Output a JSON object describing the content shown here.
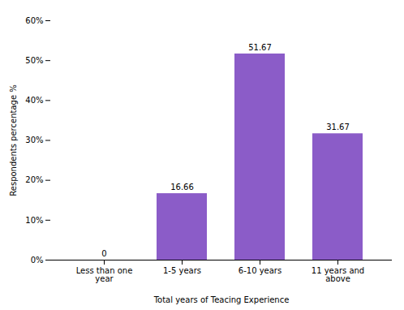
{
  "chart_data": {
    "type": "bar",
    "categories": [
      "Less than one\nyear",
      "1-5 years",
      "6-10 years",
      "11 years and\nabove"
    ],
    "values": [
      0,
      16.66,
      51.67,
      31.67
    ],
    "color": "#8B5CC8",
    "xlabel": "Total years of Teacing Experience",
    "ylabel": "Respondents percentage %",
    "ylim": [
      0,
      60
    ],
    "yticks": [
      {
        "value": 0,
        "label": "0%"
      },
      {
        "value": 10,
        "label": "10%"
      },
      {
        "value": 20,
        "label": "20%"
      },
      {
        "value": 30,
        "label": "30%"
      },
      {
        "value": 40,
        "label": "40%"
      },
      {
        "value": 50,
        "label": "50%"
      },
      {
        "value": 60,
        "label": "60%"
      }
    ],
    "data_labels": true,
    "grid": false
  }
}
